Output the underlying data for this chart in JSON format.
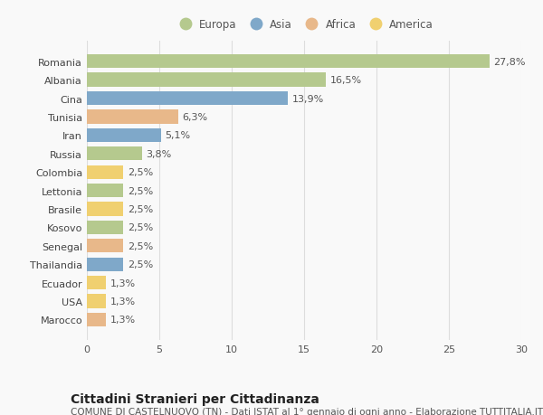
{
  "countries": [
    "Romania",
    "Albania",
    "Cina",
    "Tunisia",
    "Iran",
    "Russia",
    "Colombia",
    "Lettonia",
    "Brasile",
    "Kosovo",
    "Senegal",
    "Thailandia",
    "Ecuador",
    "USA",
    "Marocco"
  ],
  "values": [
    27.8,
    16.5,
    13.9,
    6.3,
    5.1,
    3.8,
    2.5,
    2.5,
    2.5,
    2.5,
    2.5,
    2.5,
    1.3,
    1.3,
    1.3
  ],
  "labels": [
    "27,8%",
    "16,5%",
    "13,9%",
    "6,3%",
    "5,1%",
    "3,8%",
    "2,5%",
    "2,5%",
    "2,5%",
    "2,5%",
    "2,5%",
    "2,5%",
    "1,3%",
    "1,3%",
    "1,3%"
  ],
  "continents": [
    "Europa",
    "Europa",
    "Asia",
    "Africa",
    "Asia",
    "Europa",
    "America",
    "Europa",
    "America",
    "Europa",
    "Africa",
    "Asia",
    "America",
    "America",
    "Africa"
  ],
  "continent_colors": {
    "Europa": "#b5c98e",
    "Asia": "#7fa8c9",
    "Africa": "#e8b88a",
    "America": "#f0d070"
  },
  "legend_order": [
    "Europa",
    "Asia",
    "Africa",
    "America"
  ],
  "legend_colors": [
    "#b5c98e",
    "#7fa8c9",
    "#e8b88a",
    "#f0d070"
  ],
  "xlim": [
    0,
    30
  ],
  "xticks": [
    0,
    5,
    10,
    15,
    20,
    25,
    30
  ],
  "title_bold": "Cittadini Stranieri per Cittadinanza",
  "subtitle": "COMUNE DI CASTELNUOVO (TN) - Dati ISTAT al 1° gennaio di ogni anno - Elaborazione TUTTITALIA.IT",
  "background_color": "#f9f9f9",
  "bar_height": 0.75,
  "grid_color": "#dddddd",
  "label_fontsize": 8,
  "tick_fontsize": 8,
  "title_fontsize": 10,
  "subtitle_fontsize": 7.5
}
